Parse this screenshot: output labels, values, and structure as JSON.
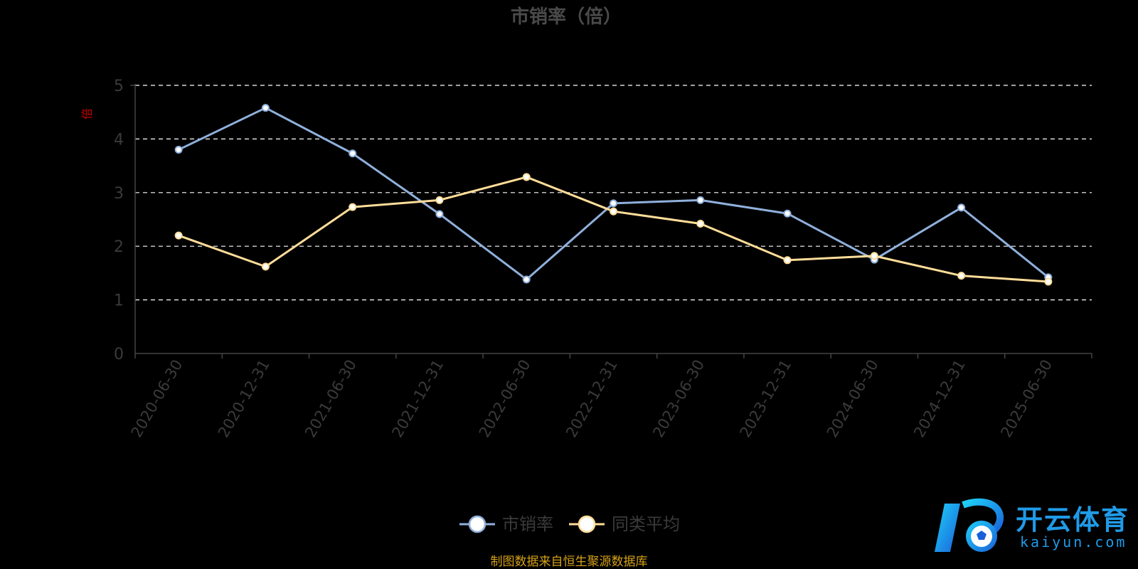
{
  "chart_data": {
    "type": "line",
    "title": "市销率（倍）",
    "ylabel": "倍",
    "ylim": [
      0,
      5
    ],
    "yticks": [
      "0",
      "1",
      "2",
      "3",
      "4",
      "5"
    ],
    "categories": [
      "2020-06-30",
      "2020-12-31",
      "2021-06-30",
      "2021-12-31",
      "2022-06-30",
      "2022-12-31",
      "2023-06-30",
      "2023-12-31",
      "2024-06-30",
      "2024-12-31",
      "2025-06-30"
    ],
    "series": [
      {
        "name": "市销率",
        "color": "#8fb0dc",
        "values": [
          3.8,
          4.58,
          3.73,
          2.6,
          1.38,
          2.8,
          2.86,
          2.61,
          1.75,
          2.72,
          1.42
        ]
      },
      {
        "name": "同类平均",
        "color": "#ffdd99",
        "values": [
          2.2,
          1.62,
          2.73,
          2.86,
          3.29,
          2.65,
          2.42,
          1.74,
          1.82,
          1.45,
          1.34
        ]
      }
    ],
    "grid": "horizontal-dashed",
    "legend_position": "bottom-center",
    "colors": {
      "title": "#4a4a4a",
      "axis_text": "#3a3a3a",
      "ylabel": "#cc0000",
      "source": "#d4a017",
      "grid": "#ffffff",
      "axis": "#444444"
    }
  },
  "source_note": "制图数据来自恒生聚源数据库",
  "watermark": {
    "cn": "开云体育",
    "en": "kaiyun.com"
  }
}
